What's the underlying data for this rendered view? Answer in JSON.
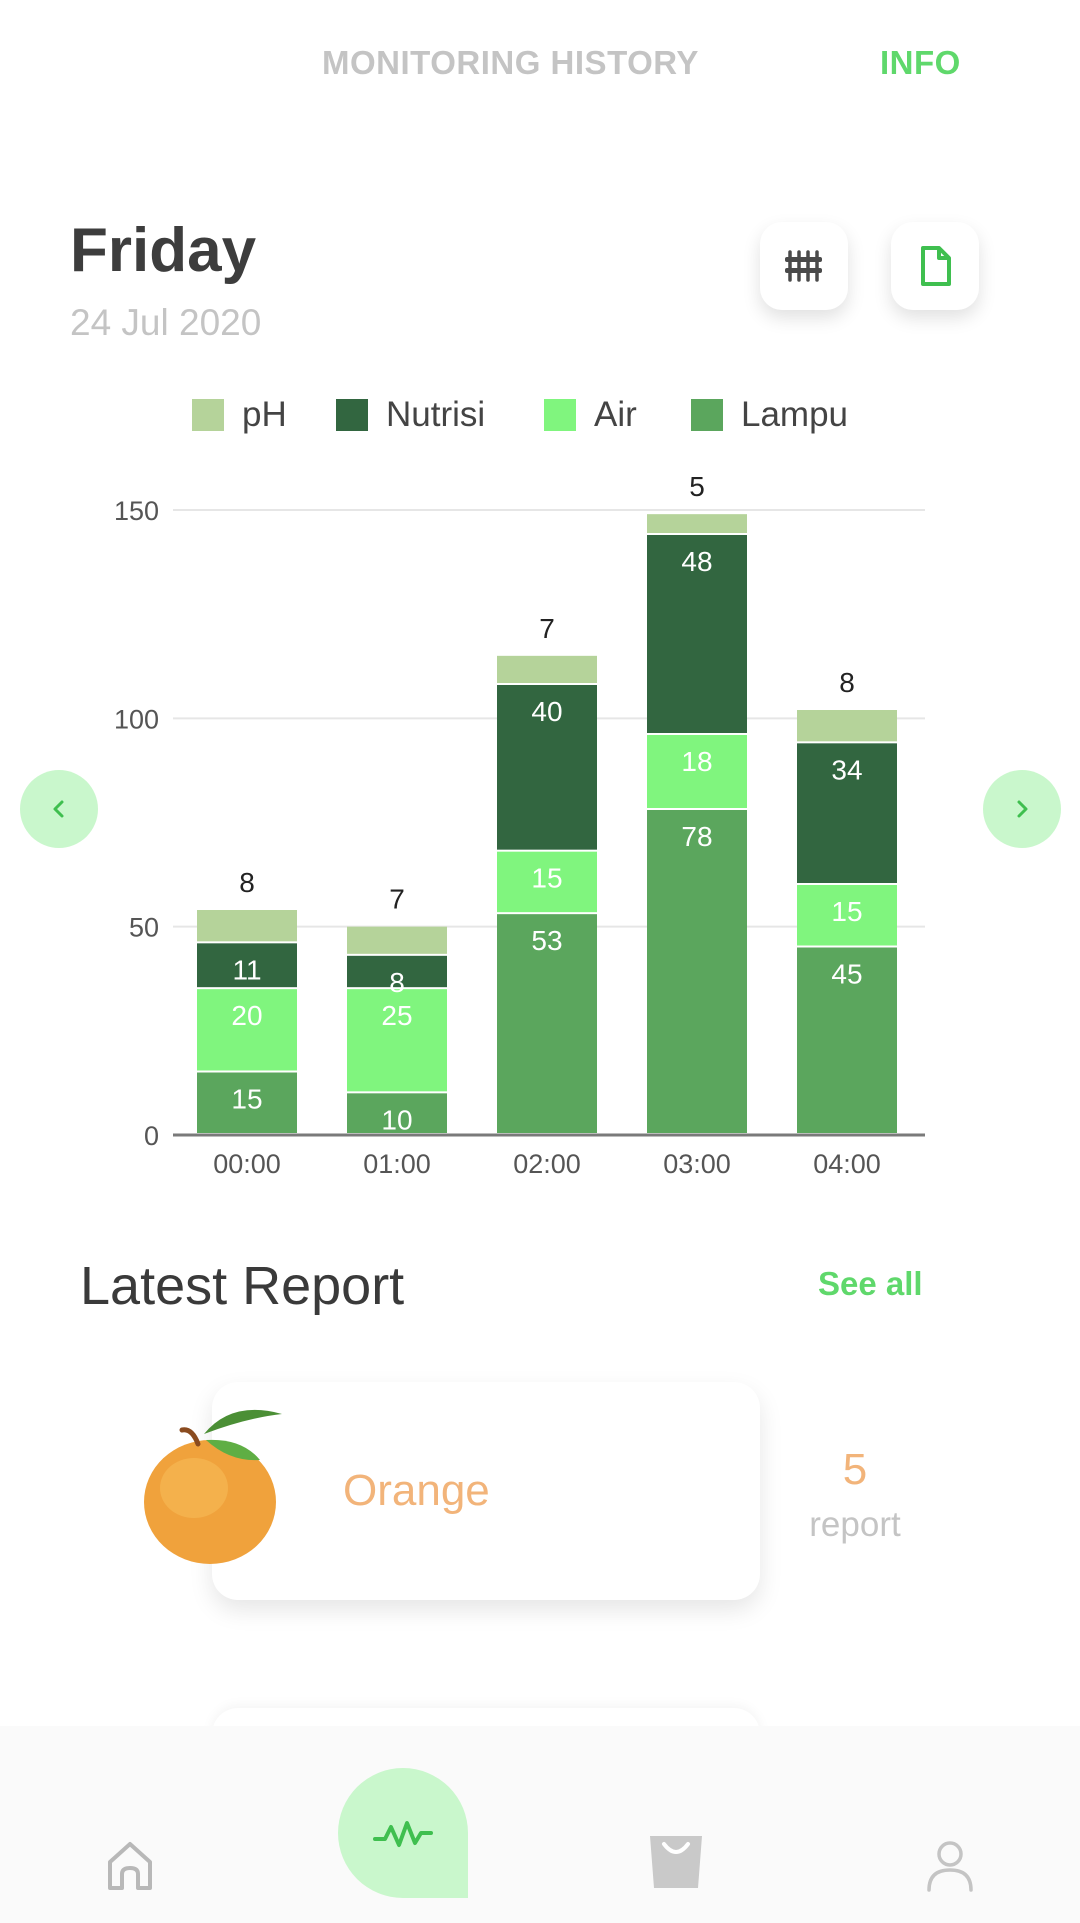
{
  "tabs": {
    "history": "MONITORING HISTORY",
    "info": "INFO"
  },
  "header": {
    "day": "Friday",
    "date": "24 Jul 2020"
  },
  "toolbar": {
    "filter_icon": "sliders-icon",
    "document_icon": "document-icon"
  },
  "colors": {
    "accent": "#5fd86b",
    "ph": "#b5d39a",
    "nutrisi": "#326640",
    "air": "#80f57e",
    "lampu": "#5ba65d",
    "orange_text": "#f2b47a"
  },
  "chart_data": {
    "type": "bar",
    "stacked": true,
    "categories": [
      "00:00",
      "01:00",
      "02:00",
      "03:00",
      "04:00"
    ],
    "series": [
      {
        "name": "Lampu",
        "values": [
          15,
          10,
          53,
          78,
          45
        ]
      },
      {
        "name": "Air",
        "values": [
          20,
          25,
          15,
          18,
          15
        ]
      },
      {
        "name": "Nutrisi",
        "values": [
          11,
          8,
          40,
          48,
          34
        ]
      },
      {
        "name": "pH",
        "values": [
          8,
          7,
          7,
          5,
          8
        ]
      }
    ],
    "legend": [
      "pH",
      "Nutrisi",
      "Air",
      "Lampu"
    ],
    "yticks": [
      0,
      50,
      100,
      150
    ],
    "ylim": [
      0,
      150
    ],
    "grid": true,
    "legend_position": "top"
  },
  "nav_arrows": {
    "left": "‹",
    "right": "›"
  },
  "latest_report": {
    "title": "Latest Report",
    "see_all": "See all",
    "items": [
      {
        "name": "Orange",
        "count": "5",
        "count_label": "report"
      }
    ]
  },
  "bottom_nav": {
    "items": [
      {
        "icon": "home-icon"
      },
      {
        "icon": "activity-icon"
      },
      {
        "icon": "shopping-bag-icon"
      },
      {
        "icon": "profile-icon"
      }
    ]
  }
}
